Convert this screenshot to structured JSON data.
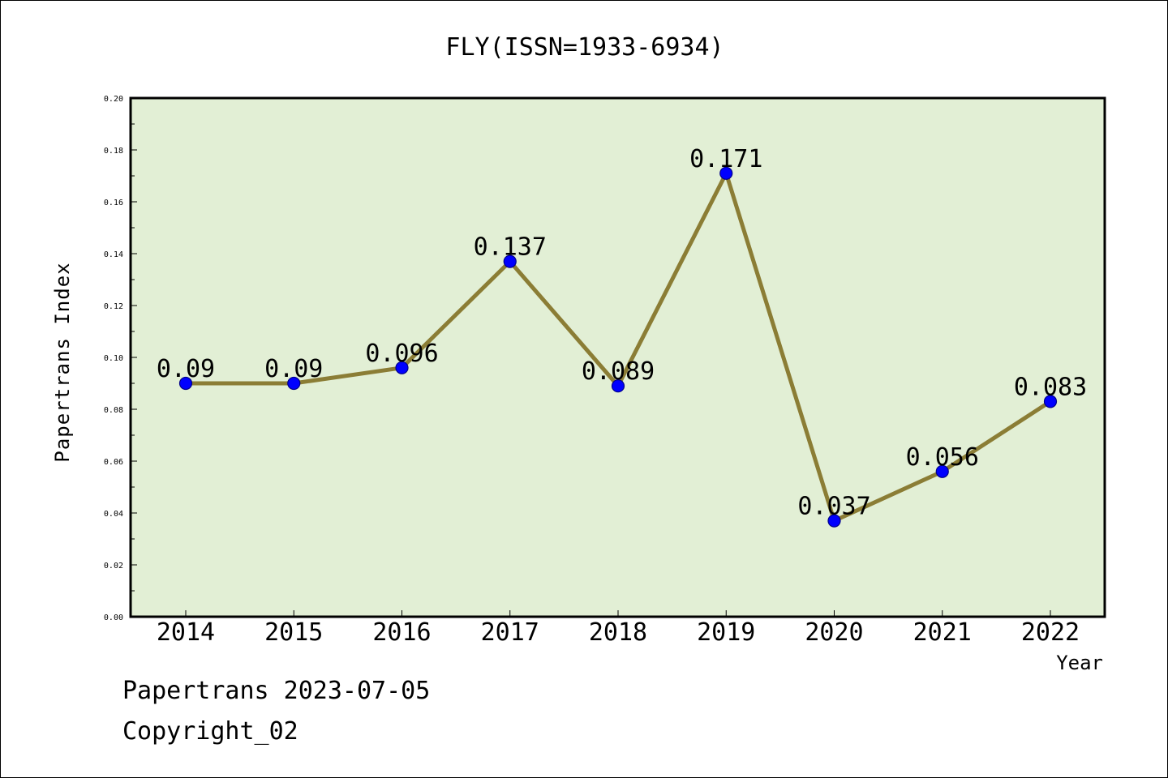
{
  "chart_data": {
    "type": "line",
    "title": "FLY(ISSN=1933-6934)",
    "xlabel": "Year",
    "ylabel": "Papertrans Index",
    "categories": [
      "2014",
      "2015",
      "2016",
      "2017",
      "2018",
      "2019",
      "2020",
      "2021",
      "2022"
    ],
    "series": [
      {
        "values": [
          0.09,
          0.09,
          0.096,
          0.137,
          0.089,
          0.171,
          0.037,
          0.056,
          0.083
        ],
        "data_labels": [
          "0.09",
          "0.09",
          "0.096",
          "0.137",
          "0.089",
          "0.171",
          "0.037",
          "0.056",
          "0.083"
        ],
        "line_color": "#8b7d35",
        "marker_color": "#0000ff"
      }
    ],
    "ylim": [
      0,
      0.2
    ],
    "yticks": [
      "0.00",
      "0.02",
      "0.04",
      "0.06",
      "0.08",
      "0.10",
      "0.12",
      "0.14",
      "0.16",
      "0.18",
      "0.20"
    ],
    "plot_background": "#e2efd5",
    "grid": false
  },
  "footer": {
    "date_line": "Papertrans 2023-07-05",
    "copyright_line": "Copyright_02"
  }
}
